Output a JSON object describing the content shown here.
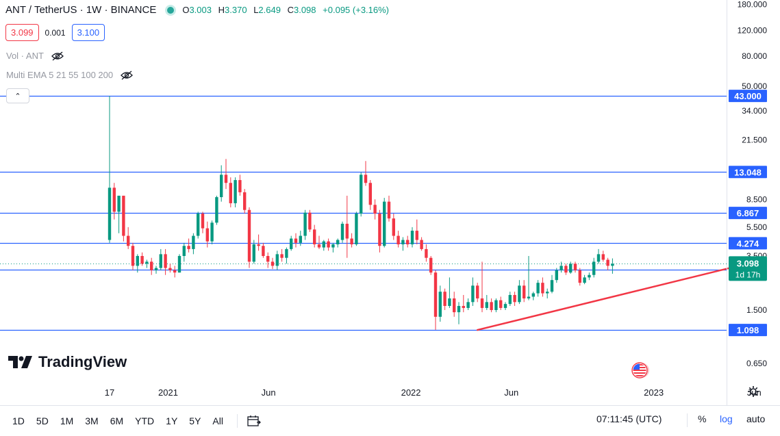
{
  "header": {
    "symbol_title": "ANT / TetherUS · 1W · BINANCE",
    "ohlc": [
      {
        "key": "O",
        "value": "3.003"
      },
      {
        "key": "H",
        "value": "3.370"
      },
      {
        "key": "L",
        "value": "2.649"
      },
      {
        "key": "C",
        "value": "3.098"
      },
      {
        "key": "",
        "value": "+0.095 (+3.16%)"
      }
    ],
    "sell_price": "3.099",
    "spread": "0.001",
    "buy_price": "3.100",
    "vol_label": "Vol · ANT",
    "ema_label": "Multi EMA 5 21 55 100 200",
    "collapse_glyph": "⌃"
  },
  "logo": {
    "text": "TradingView"
  },
  "toolbar": {
    "ranges": [
      "1D",
      "5D",
      "1M",
      "3M",
      "6M",
      "YTD",
      "1Y",
      "5Y",
      "All"
    ],
    "clock": "07:11:45 (UTC)",
    "percent_label": "%",
    "log_label": "log",
    "auto_label": "auto"
  },
  "colors": {
    "up": "#089981",
    "down": "#f23645",
    "level_line": "#2962ff",
    "trend_line": "#f23645",
    "label_bg": "#2962ff"
  },
  "chart_data": {
    "type": "candlestick",
    "scale": "log",
    "title": "ANT / TetherUS · 1W · BINANCE",
    "y_ticks": [
      "180.000",
      "120.000",
      "80.000",
      "50.000",
      "34.000",
      "21.500",
      "8.500",
      "5.500",
      "3.500",
      "1.500",
      "0.650"
    ],
    "x_ticks": [
      {
        "label": "17",
        "date": "2020-10-05"
      },
      {
        "label": "2021",
        "date": "2021-01-01"
      },
      {
        "label": "Jun",
        "date": "2021-06-01"
      },
      {
        "label": "2022",
        "date": "2022-01-01"
      },
      {
        "label": "Jun",
        "date": "2022-06-01"
      },
      {
        "label": "2023",
        "date": "2023-01-01"
      },
      {
        "label": "Jun",
        "date": "2023-06-01"
      }
    ],
    "levels": [
      "43.000",
      "13.048",
      "6.867",
      "4.274",
      "2.820",
      "1.098"
    ],
    "current_price": "3.098",
    "countdown": "1d 17h",
    "trend_line": {
      "from": {
        "week": 79,
        "value": 1.098
      },
      "to": {
        "week": 136,
        "value": 3.05
      }
    },
    "candles": [
      [
        4.5,
        43.0,
        4.3,
        10.2
      ],
      [
        10.2,
        11.0,
        6.2,
        7.0
      ],
      [
        7.0,
        9.0,
        5.0,
        9.0
      ],
      [
        9.0,
        9.0,
        4.4,
        4.8
      ],
      [
        4.8,
        5.5,
        3.9,
        4.1
      ],
      [
        4.1,
        4.3,
        2.8,
        3.0
      ],
      [
        3.0,
        3.6,
        2.7,
        3.5
      ],
      [
        3.5,
        3.7,
        3.0,
        3.1
      ],
      [
        3.1,
        3.3,
        2.9,
        3.2
      ],
      [
        3.2,
        3.4,
        2.6,
        2.8
      ],
      [
        2.8,
        3.0,
        2.65,
        2.9
      ],
      [
        2.9,
        3.9,
        2.8,
        3.6
      ],
      [
        3.6,
        3.9,
        2.6,
        2.9
      ],
      [
        2.9,
        3.1,
        2.7,
        2.8
      ],
      [
        2.8,
        3.0,
        2.5,
        2.7
      ],
      [
        2.7,
        3.6,
        2.7,
        3.5
      ],
      [
        3.5,
        4.3,
        3.2,
        4.1
      ],
      [
        4.1,
        4.6,
        3.7,
        3.9
      ],
      [
        3.9,
        5.0,
        3.6,
        4.8
      ],
      [
        4.8,
        7.0,
        4.6,
        6.8
      ],
      [
        6.8,
        7.0,
        5.0,
        5.4
      ],
      [
        5.4,
        6.0,
        4.0,
        4.4
      ],
      [
        4.4,
        6.1,
        4.2,
        5.9
      ],
      [
        5.9,
        9.0,
        5.7,
        8.8
      ],
      [
        8.8,
        14.5,
        8.2,
        12.5
      ],
      [
        12.5,
        16.0,
        10.0,
        11.0
      ],
      [
        11.0,
        12.0,
        7.5,
        8.0
      ],
      [
        8.0,
        12.0,
        7.5,
        11.5
      ],
      [
        11.5,
        12.5,
        9.0,
        9.5
      ],
      [
        9.5,
        10.0,
        6.8,
        7.2
      ],
      [
        7.2,
        7.5,
        2.9,
        3.2
      ],
      [
        3.2,
        4.5,
        3.1,
        4.2
      ],
      [
        4.2,
        4.9,
        3.8,
        4.1
      ],
      [
        4.1,
        4.3,
        3.4,
        3.5
      ],
      [
        3.5,
        3.7,
        2.9,
        3.2
      ],
      [
        3.2,
        3.4,
        2.85,
        3.0
      ],
      [
        3.0,
        3.8,
        2.8,
        3.6
      ],
      [
        3.6,
        3.9,
        3.2,
        3.4
      ],
      [
        3.4,
        4.0,
        3.1,
        3.9
      ],
      [
        3.9,
        4.8,
        3.8,
        4.6
      ],
      [
        4.6,
        5.0,
        4.0,
        4.3
      ],
      [
        4.3,
        5.2,
        4.1,
        4.8
      ],
      [
        4.8,
        7.2,
        4.5,
        6.9
      ],
      [
        6.9,
        7.2,
        5.1,
        5.3
      ],
      [
        5.3,
        5.7,
        4.0,
        4.2
      ],
      [
        4.2,
        4.8,
        3.9,
        4.0
      ],
      [
        4.0,
        4.5,
        3.8,
        4.4
      ],
      [
        4.4,
        4.6,
        3.8,
        4.0
      ],
      [
        4.0,
        4.3,
        3.7,
        4.2
      ],
      [
        4.2,
        4.6,
        4.0,
        4.5
      ],
      [
        4.5,
        6.0,
        4.3,
        5.8
      ],
      [
        5.8,
        9.0,
        3.4,
        4.6
      ],
      [
        4.6,
        5.0,
        4.0,
        4.2
      ],
      [
        4.2,
        7.0,
        4.1,
        6.8
      ],
      [
        6.8,
        13.0,
        6.5,
        12.5
      ],
      [
        12.5,
        15.5,
        10.5,
        11.0
      ],
      [
        11.0,
        11.5,
        7.2,
        7.8
      ],
      [
        7.8,
        8.5,
        6.2,
        6.8
      ],
      [
        6.8,
        7.2,
        3.7,
        4.1
      ],
      [
        4.1,
        8.7,
        4.0,
        8.2
      ],
      [
        8.2,
        9.0,
        6.0,
        6.3
      ],
      [
        6.3,
        6.8,
        4.5,
        4.8
      ],
      [
        4.8,
        5.2,
        4.0,
        4.2
      ],
      [
        4.2,
        4.7,
        3.8,
        4.5
      ],
      [
        4.5,
        4.8,
        4.0,
        4.2
      ],
      [
        4.2,
        5.5,
        4.0,
        5.2
      ],
      [
        5.2,
        6.2,
        4.2,
        4.5
      ],
      [
        4.5,
        4.7,
        3.8,
        3.9
      ],
      [
        3.9,
        4.2,
        3.2,
        3.4
      ],
      [
        3.4,
        3.5,
        2.6,
        2.7
      ],
      [
        2.7,
        2.8,
        1.1,
        1.35
      ],
      [
        1.35,
        2.2,
        1.25,
        2.0
      ],
      [
        2.0,
        2.1,
        1.5,
        1.6
      ],
      [
        1.6,
        2.5,
        1.55,
        1.8
      ],
      [
        1.8,
        2.0,
        1.35,
        1.45
      ],
      [
        1.45,
        1.7,
        1.2,
        1.6
      ],
      [
        1.6,
        1.9,
        1.45,
        1.55
      ],
      [
        1.55,
        1.8,
        1.5,
        1.7
      ],
      [
        1.7,
        2.5,
        1.6,
        2.2
      ],
      [
        2.2,
        2.3,
        1.7,
        1.8
      ],
      [
        1.8,
        3.2,
        1.45,
        1.55
      ],
      [
        1.55,
        1.9,
        1.5,
        1.7
      ],
      [
        1.7,
        1.8,
        1.45,
        1.5
      ],
      [
        1.5,
        1.8,
        1.45,
        1.75
      ],
      [
        1.75,
        1.85,
        1.5,
        1.55
      ],
      [
        1.55,
        1.7,
        1.5,
        1.65
      ],
      [
        1.65,
        2.0,
        1.6,
        1.9
      ],
      [
        1.9,
        2.0,
        1.6,
        1.7
      ],
      [
        1.7,
        2.4,
        1.65,
        2.2
      ],
      [
        2.2,
        2.4,
        1.7,
        1.8
      ],
      [
        1.8,
        3.5,
        1.75,
        1.85
      ],
      [
        1.85,
        2.0,
        1.75,
        1.95
      ],
      [
        1.95,
        2.4,
        1.85,
        2.3
      ],
      [
        2.3,
        2.5,
        1.85,
        1.95
      ],
      [
        1.95,
        2.1,
        1.8,
        2.0
      ],
      [
        2.0,
        2.6,
        1.95,
        2.4
      ],
      [
        2.4,
        2.9,
        2.3,
        2.8
      ],
      [
        2.8,
        3.2,
        2.7,
        3.0
      ],
      [
        3.0,
        3.1,
        2.6,
        2.7
      ],
      [
        2.7,
        3.2,
        2.65,
        3.1
      ],
      [
        3.1,
        3.2,
        2.7,
        2.8
      ],
      [
        2.8,
        2.9,
        2.2,
        2.3
      ],
      [
        2.3,
        2.6,
        2.25,
        2.5
      ],
      [
        2.5,
        2.7,
        2.4,
        2.6
      ],
      [
        2.6,
        3.4,
        2.5,
        3.2
      ],
      [
        3.2,
        3.9,
        3.1,
        3.6
      ],
      [
        3.6,
        3.8,
        3.2,
        3.3
      ],
      [
        3.3,
        3.4,
        2.8,
        3.0
      ],
      [
        3.0,
        3.37,
        2.65,
        3.098
      ]
    ]
  }
}
